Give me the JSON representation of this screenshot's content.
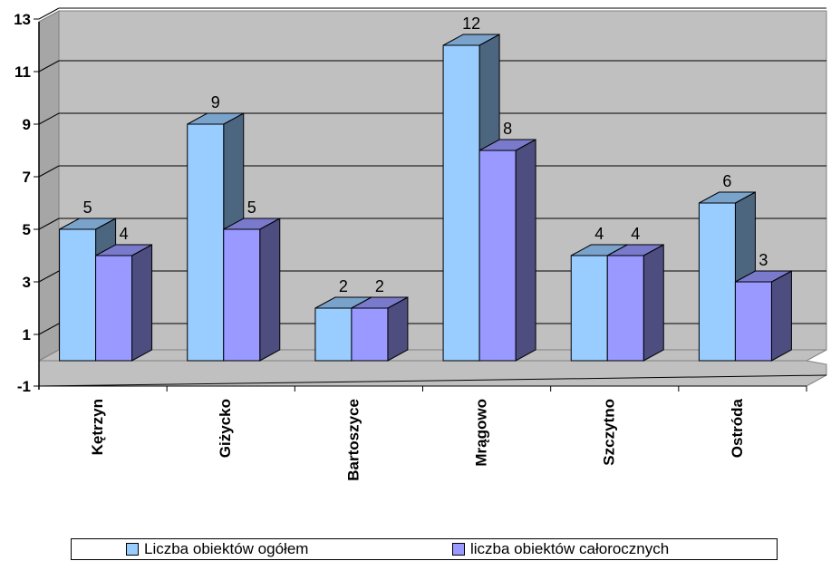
{
  "chart_data": {
    "type": "bar",
    "categories": [
      "Kętrzyn",
      "Giżycko",
      "Bartoszyce",
      "Mrągowo",
      "Szczytno",
      "Ostróda"
    ],
    "series": [
      {
        "name": "Liczba obiektów ogółem",
        "values": [
          5,
          9,
          2,
          12,
          4,
          6
        ],
        "color": "#99CCFF"
      },
      {
        "name": "liczba obiektów całorocznych",
        "values": [
          4,
          5,
          2,
          8,
          4,
          3
        ],
        "color": "#9999FF"
      }
    ],
    "ylim": [
      -1,
      13
    ],
    "yticks": [
      -1,
      1,
      3,
      5,
      7,
      9,
      11,
      13
    ],
    "grid": true,
    "three_d": true,
    "legend_position": "bottom",
    "wall_color": "#C0C0C0",
    "data_labels": true
  }
}
